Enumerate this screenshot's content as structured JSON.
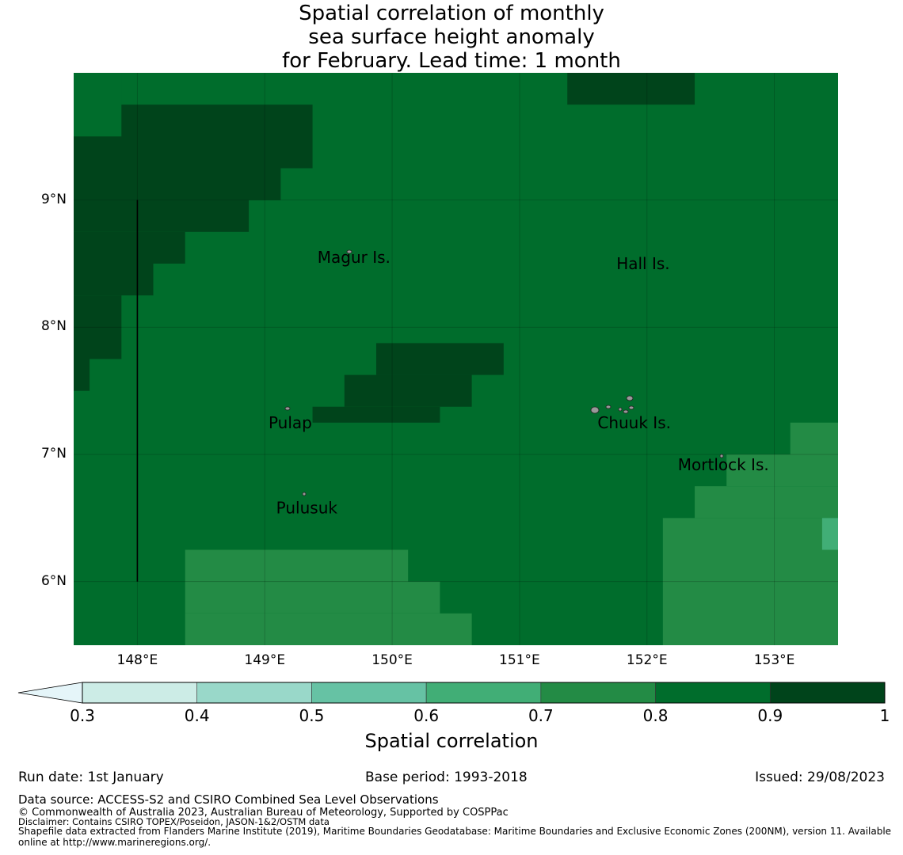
{
  "title": {
    "line1": "Spatial correlation of monthly",
    "line2": "sea surface height anomaly",
    "line3": "for February. Lead time: 1 month"
  },
  "map": {
    "lon_range": [
      147.5,
      153.5
    ],
    "lat_range": [
      5.5,
      10.0
    ],
    "lon_ticks": [
      "148°E",
      "149°E",
      "150°E",
      "151°E",
      "152°E",
      "153°E"
    ],
    "lat_ticks": [
      "9°N",
      "8°N",
      "7°N",
      "6°N"
    ],
    "background_class": "0.8-0.9",
    "places": [
      {
        "name": "Magur Is.",
        "lon": 149.7,
        "lat": 8.55
      },
      {
        "name": "Hall Is.",
        "lon": 151.97,
        "lat": 8.5
      },
      {
        "name": "Pulap",
        "lon": 149.2,
        "lat": 7.25
      },
      {
        "name": "Chuuk Is.",
        "lon": 151.9,
        "lat": 7.25
      },
      {
        "name": "Mortlock Is.",
        "lon": 152.6,
        "lat": 6.92
      },
      {
        "name": "Pulusuk",
        "lon": 149.33,
        "lat": 6.58
      }
    ],
    "regions": [
      {
        "cls": "0.9-1",
        "lon": [
          147.5,
          149.375
        ],
        "lat": [
          9.75,
          9.25
        ]
      },
      {
        "cls": "0.9-1",
        "lon": [
          147.5,
          149.125
        ],
        "lat": [
          9.25,
          9.0
        ]
      },
      {
        "cls": "0.9-1",
        "lon": [
          147.5,
          148.875
        ],
        "lat": [
          9.0,
          8.75
        ]
      },
      {
        "cls": "0.9-1",
        "lon": [
          147.5,
          148.375
        ],
        "lat": [
          8.75,
          8.5
        ]
      },
      {
        "cls": "0.9-1",
        "lon": [
          147.5,
          148.125
        ],
        "lat": [
          8.5,
          8.25
        ]
      },
      {
        "cls": "0.9-1",
        "lon": [
          147.5,
          147.875
        ],
        "lat": [
          8.25,
          7.75
        ]
      },
      {
        "cls": "0.9-1",
        "lon": [
          147.5,
          147.625
        ],
        "lat": [
          7.75,
          7.5
        ]
      },
      {
        "cls": "0.8-0.9",
        "lon": [
          147.5,
          147.875
        ],
        "lat": [
          10.0,
          9.5
        ]
      },
      {
        "cls": "0.9-1",
        "lon": [
          151.375,
          152.375
        ],
        "lat": [
          10.0,
          9.75
        ]
      },
      {
        "cls": "0.9-1",
        "lon": [
          149.875,
          150.875
        ],
        "lat": [
          7.875,
          7.625
        ]
      },
      {
        "cls": "0.9-1",
        "lon": [
          149.625,
          150.625
        ],
        "lat": [
          7.625,
          7.375
        ]
      },
      {
        "cls": "0.9-1",
        "lon": [
          149.375,
          150.375
        ],
        "lat": [
          7.375,
          7.25
        ]
      },
      {
        "cls": "0.7-0.8",
        "lon": [
          148.375,
          150.125
        ],
        "lat": [
          6.25,
          6.0
        ]
      },
      {
        "cls": "0.7-0.8",
        "lon": [
          148.375,
          150.375
        ],
        "lat": [
          6.0,
          5.75
        ]
      },
      {
        "cls": "0.7-0.8",
        "lon": [
          148.375,
          150.625
        ],
        "lat": [
          5.75,
          5.5
        ]
      },
      {
        "cls": "0.7-0.8",
        "lon": [
          153.125,
          153.5
        ],
        "lat": [
          7.25,
          7.0
        ]
      },
      {
        "cls": "0.7-0.8",
        "lon": [
          152.625,
          153.5
        ],
        "lat": [
          7.0,
          6.75
        ]
      },
      {
        "cls": "0.7-0.8",
        "lon": [
          152.375,
          153.5
        ],
        "lat": [
          6.75,
          6.5
        ]
      },
      {
        "cls": "0.7-0.8",
        "lon": [
          152.125,
          153.5
        ],
        "lat": [
          6.5,
          5.5
        ]
      },
      {
        "cls": "0.6-0.7",
        "lon": [
          153.375,
          153.5
        ],
        "lat": [
          6.5,
          6.25
        ]
      }
    ],
    "boundary_line": {
      "lon": 148.0,
      "lat": [
        9.0,
        6.0
      ]
    }
  },
  "colorbar": {
    "title": "Spatial correlation",
    "bounds": [
      0.3,
      0.4,
      0.5,
      0.6,
      0.7,
      0.8,
      0.9,
      1.0
    ],
    "tick_labels": [
      "0.3",
      "0.4",
      "0.5",
      "0.6",
      "0.7",
      "0.8",
      "0.9",
      "1"
    ],
    "colors": [
      "#ccece6",
      "#99d8c9",
      "#66c2a4",
      "#41ae76",
      "#238b45",
      "#006d2c",
      "#00441b"
    ],
    "extend_color": "#e5f5f9"
  },
  "footer": {
    "run_date": "Run date: 1st January",
    "base_period": "Base period: 1993-2018",
    "issued": "Issued: 29/08/2023",
    "data_source": "Data source: ACCESS-S2 and CSIRO Combined Sea Level Observations",
    "copyright": "© Commonwealth of Australia 2023, Australian Bureau of Meteorology, Supported by COSPPac",
    "disclaimer": "Disclaimer: Contains CSIRO TOPEX/Poseidon, JASON-1&2/OSTM data",
    "shapefile_line1": "Shapefile data extracted from Flanders Marine Institute (2019), Maritime Boundaries Geodatabase: Maritime Boundaries and Exclusive Economic Zones (200NM), version 11. Available",
    "shapefile_line2": "online at http://www.marineregions.org/."
  }
}
